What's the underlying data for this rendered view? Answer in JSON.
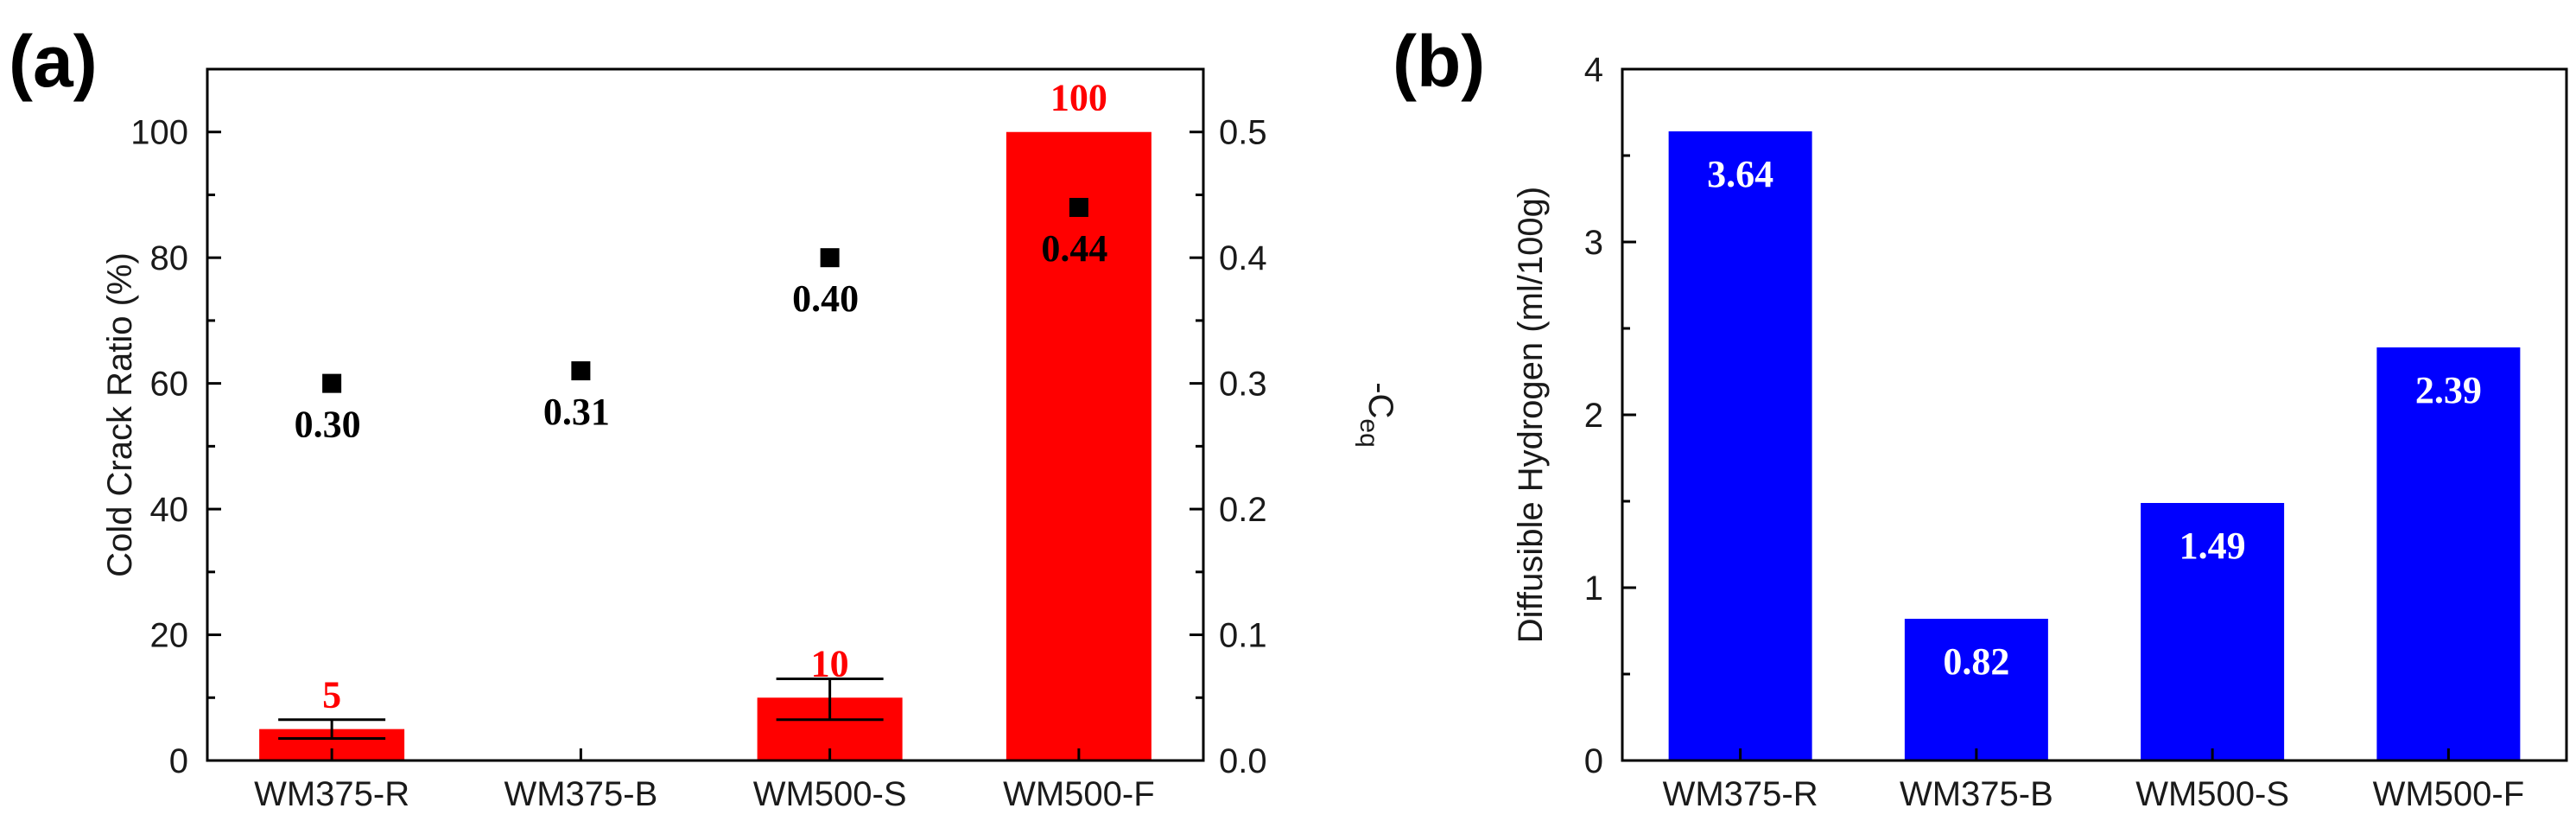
{
  "chart_data": [
    {
      "panel": "(a)",
      "type": "bar",
      "categories": [
        "WM375-R",
        "WM375-B",
        "WM500-S",
        "WM500-F"
      ],
      "series": [
        {
          "name": "Cold Crack Ratio",
          "axis": "left",
          "values": [
            5,
            0,
            10,
            100
          ],
          "labels": [
            "5",
            "",
            "10",
            "100"
          ],
          "error_low": [
            3.5,
            null,
            6.5,
            null
          ],
          "error_high": [
            6.5,
            null,
            13,
            null
          ],
          "color": "#ff0000"
        },
        {
          "name": "C_eq",
          "axis": "right",
          "kind": "scatter",
          "values": [
            0.3,
            0.31,
            0.4,
            0.44
          ],
          "labels": [
            "0.30",
            "0.31",
            "0.40",
            "0.44"
          ],
          "color": "#000000"
        }
      ],
      "ylabel": "Cold Crack Ratio (%)",
      "ylim": [
        0,
        110
      ],
      "yticks": [
        "0",
        "20",
        "40",
        "60",
        "80",
        "100"
      ],
      "y2label_main": "C",
      "y2label_sub": "eq",
      "y2label_prefix": "-",
      "y2lim": [
        0,
        0.55
      ],
      "y2ticks": [
        "0.0",
        "0.1",
        "0.2",
        "0.3",
        "0.4",
        "0.5"
      ]
    },
    {
      "panel": "(b)",
      "type": "bar",
      "categories": [
        "WM375-R",
        "WM375-B",
        "WM500-S",
        "WM500-F"
      ],
      "series": [
        {
          "name": "Diffusible Hydrogen",
          "values": [
            3.64,
            0.82,
            1.49,
            2.39
          ],
          "labels": [
            "3.64",
            "0.82",
            "1.49",
            "2.39"
          ],
          "color": "#0000ff"
        }
      ],
      "ylabel": "Diffusible Hydrogen (ml/100g)",
      "ylim": [
        0,
        4
      ],
      "yticks": [
        "0",
        "1",
        "2",
        "3",
        "4"
      ]
    }
  ]
}
